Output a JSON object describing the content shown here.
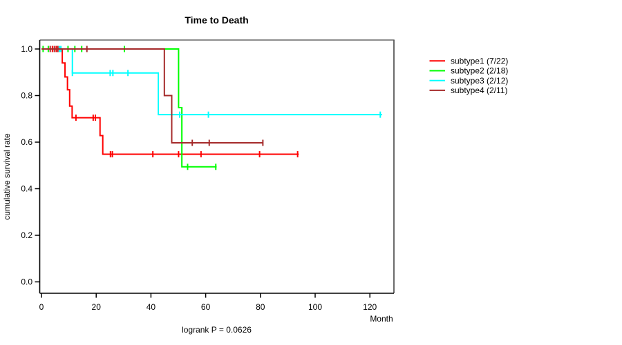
{
  "title": "Time to Death",
  "chart_data": {
    "type": "line",
    "subtype": "kaplan-meier-step",
    "title": "Time to Death",
    "xlabel": "Month",
    "ylabel": "cumulative survival rate",
    "annotation": "logrank P = 0.0626",
    "xlim": [
      0,
      128.8
    ],
    "ylim": [
      0,
      1.04
    ],
    "x_ticks": [
      "0",
      "20",
      "40",
      "60",
      "80",
      "100",
      "120"
    ],
    "y_ticks": [
      "0.0",
      "0.2",
      "0.4",
      "0.6",
      "0.8",
      "1.0"
    ],
    "grid": false,
    "legend_position": "right-outside",
    "frame_colors": {
      "top": "#8c8c8c",
      "right": "#5a5a5a",
      "axis": "#000000"
    },
    "series": [
      {
        "name": "subtype1 (7/22)",
        "color": "#ff0000",
        "steps": [
          [
            0,
            1.0
          ],
          [
            7.6,
            0.94
          ],
          [
            8.6,
            0.88
          ],
          [
            9.5,
            0.825
          ],
          [
            10.3,
            0.755
          ],
          [
            11.2,
            0.705
          ],
          [
            21.4,
            0.628
          ],
          [
            22.4,
            0.548
          ]
        ],
        "end_time": 94,
        "censor_marks": [
          [
            4.0,
            1.0
          ],
          [
            5.4,
            1.0
          ],
          [
            12.6,
            0.705
          ],
          [
            18.9,
            0.705
          ],
          [
            19.7,
            0.705
          ],
          [
            25.2,
            0.548
          ],
          [
            25.9,
            0.548
          ],
          [
            40.7,
            0.548
          ],
          [
            50.1,
            0.548
          ],
          [
            58.3,
            0.548
          ],
          [
            79.7,
            0.548
          ],
          [
            93.6,
            0.548
          ]
        ]
      },
      {
        "name": "subtype2 (2/18)",
        "color": "#00ff00",
        "steps": [
          [
            0,
            1.0
          ],
          [
            50.1,
            0.748
          ],
          [
            51.3,
            0.494
          ]
        ],
        "end_time": 64,
        "censor_marks": [
          [
            0.6,
            1.0
          ],
          [
            2.5,
            1.0
          ],
          [
            9.7,
            1.0
          ],
          [
            12.2,
            1.0
          ],
          [
            14.7,
            1.0
          ],
          [
            30.3,
            1.0
          ],
          [
            53.4,
            0.494
          ],
          [
            63.7,
            0.494
          ]
        ]
      },
      {
        "name": "subtype3 (2/12)",
        "color": "#00ffff",
        "steps": [
          [
            0,
            1.0
          ],
          [
            11.3,
            0.897
          ],
          [
            42.7,
            0.718
          ]
        ],
        "end_time": 124.5,
        "censor_marks": [
          [
            6.6,
            1.0
          ],
          [
            7.1,
            1.0
          ],
          [
            11.3,
            0.897
          ],
          [
            25.1,
            0.897
          ],
          [
            26.1,
            0.897
          ],
          [
            31.6,
            0.897
          ],
          [
            47.6,
            0.718
          ],
          [
            50.5,
            0.718
          ],
          [
            61.0,
            0.718
          ],
          [
            123.8,
            0.718
          ]
        ]
      },
      {
        "name": "subtype4 (2/11)",
        "color": "#a52a2a",
        "steps": [
          [
            0,
            1.0
          ],
          [
            44.9,
            0.8
          ],
          [
            47.6,
            0.597
          ]
        ],
        "end_time": 81,
        "censor_marks": [
          [
            3.2,
            1.0
          ],
          [
            4.7,
            1.0
          ],
          [
            6.0,
            1.0
          ],
          [
            16.6,
            1.0
          ],
          [
            55.1,
            0.597
          ],
          [
            61.3,
            0.597
          ],
          [
            80.9,
            0.597
          ]
        ]
      }
    ]
  }
}
